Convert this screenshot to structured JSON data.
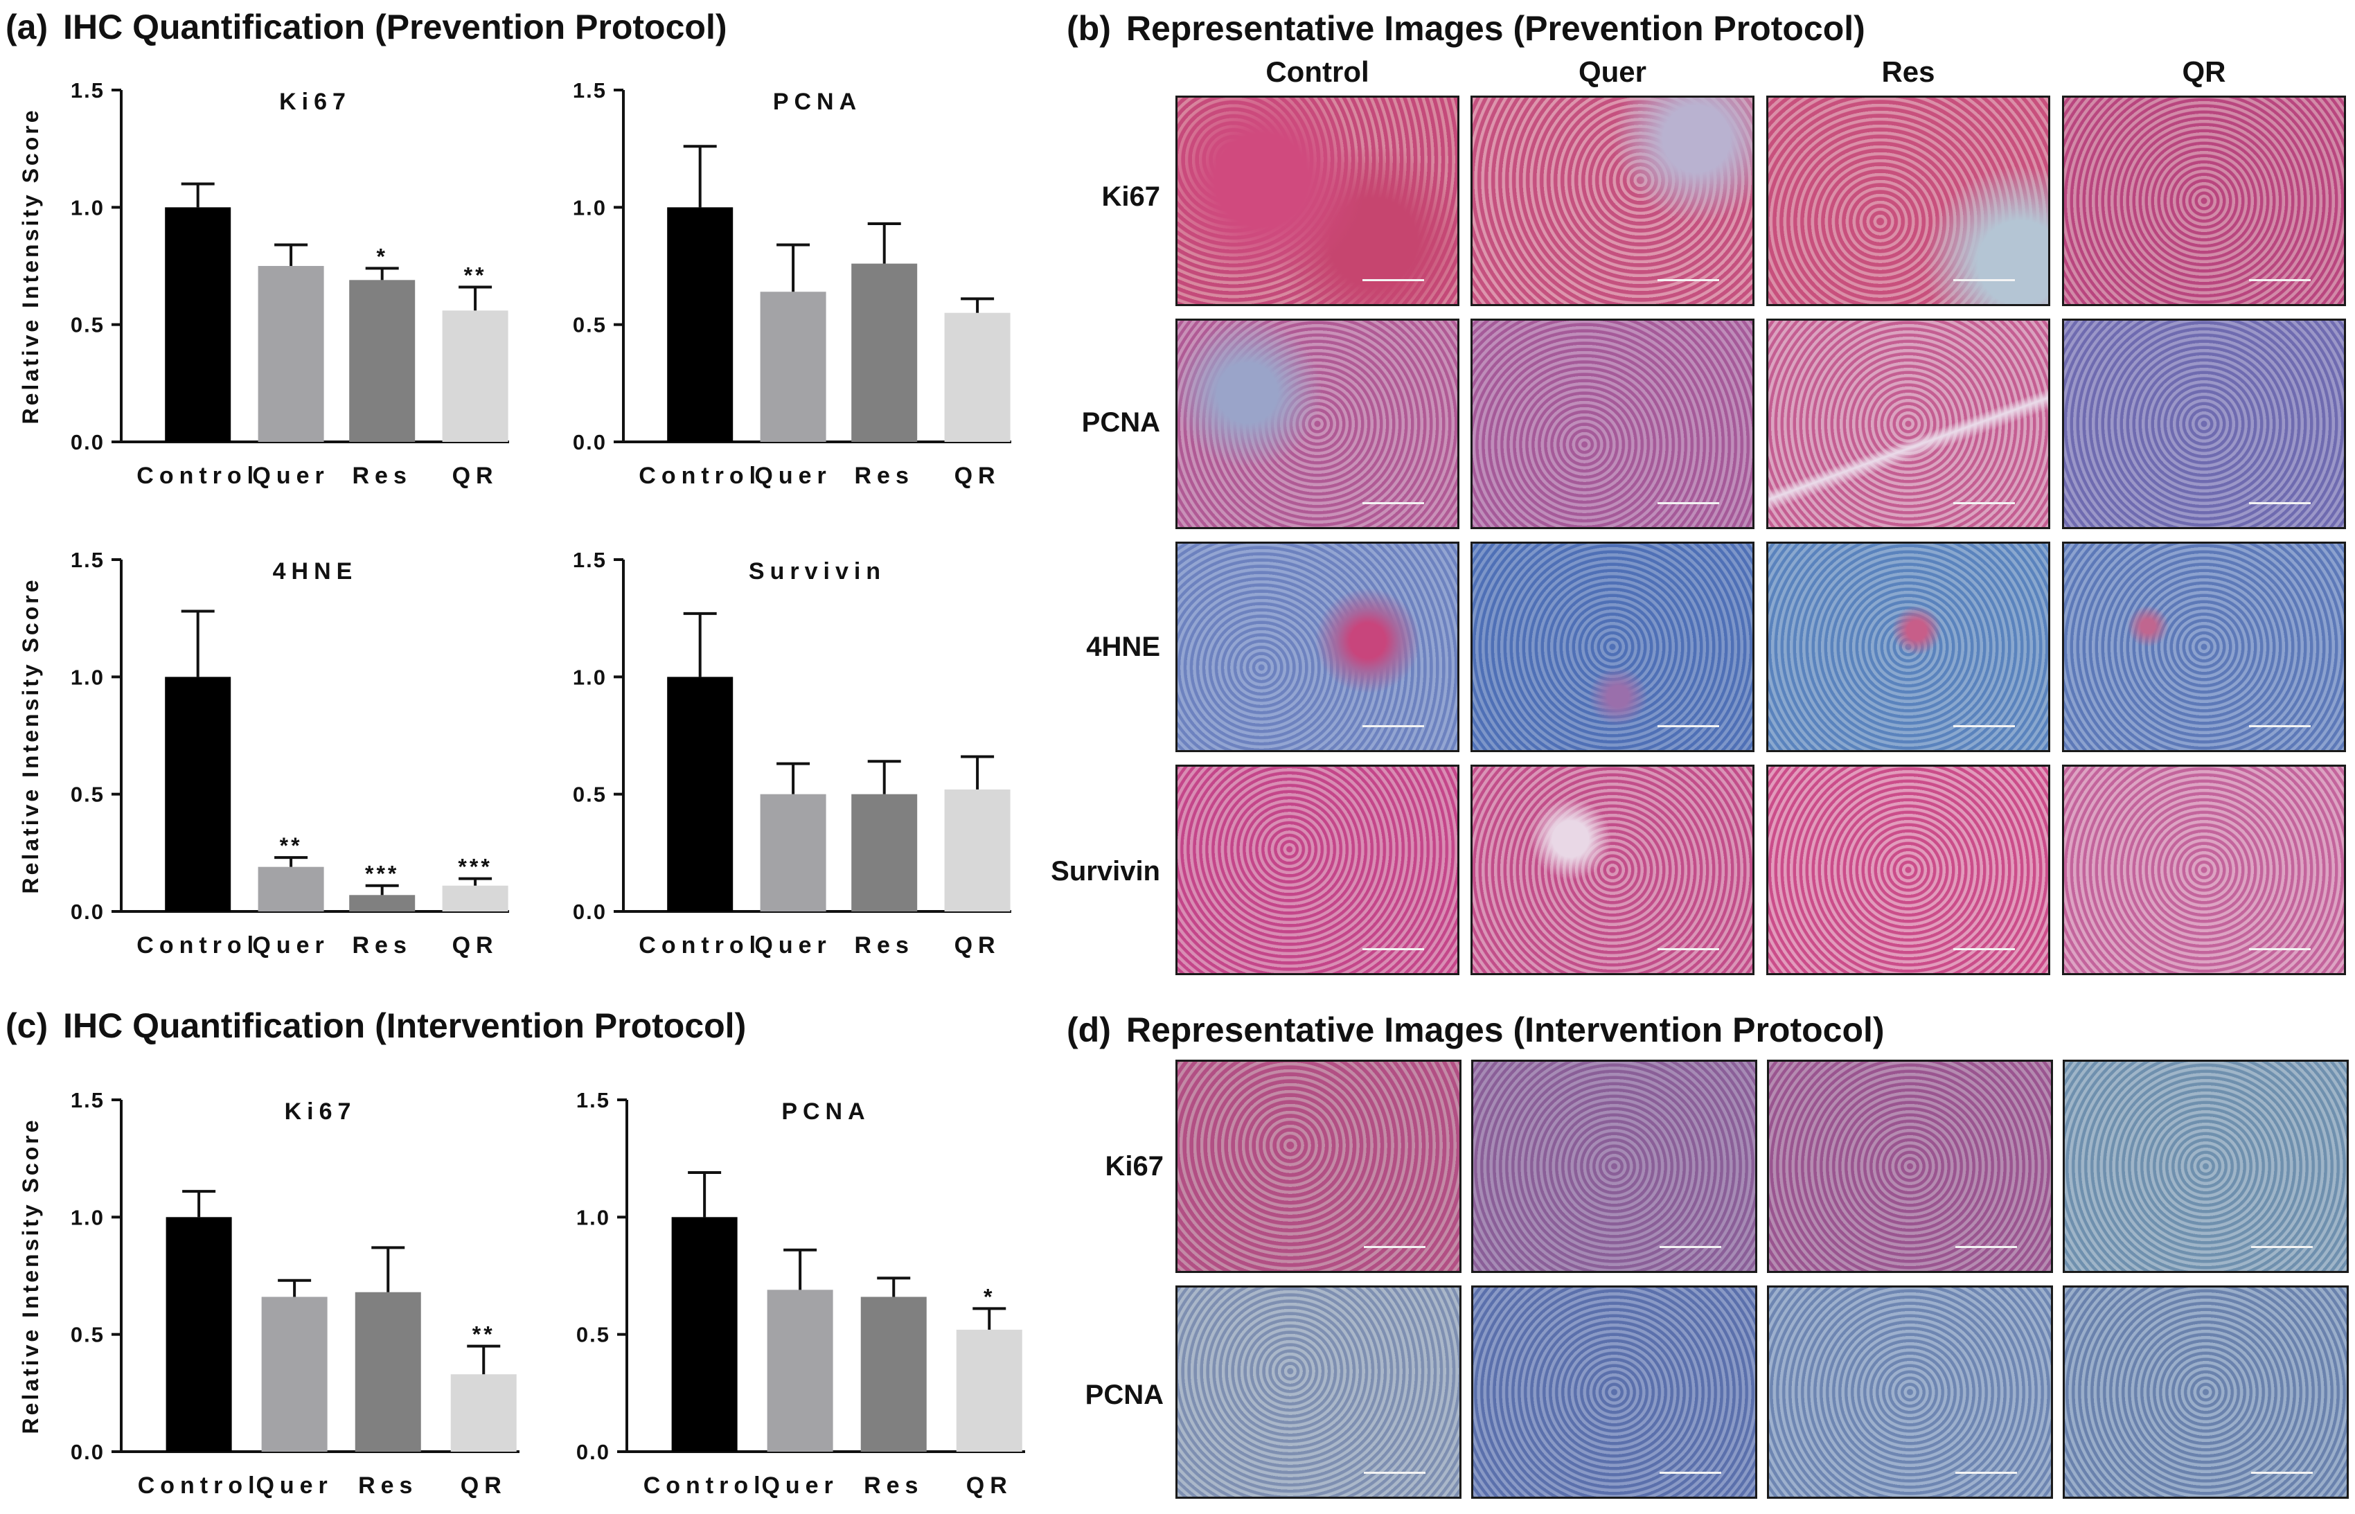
{
  "colors": {
    "Control": "#000000",
    "Quer": "#a3a3a6",
    "Res": "#808080",
    "QR": "#d8d8d8",
    "stain_pink": "#c9457f",
    "stain_blue": "#5a7bc0",
    "stain_teal": "#6f97b3"
  },
  "panels": {
    "a": {
      "letter": "(a)",
      "title": "IHC Quantification (Prevention Protocol)"
    },
    "b": {
      "letter": "(b)",
      "title": "Representative Images (Prevention Protocol)"
    },
    "c": {
      "letter": "(c)",
      "title": "IHC Quantification (Intervention Protocol)"
    },
    "d": {
      "letter": "(d)",
      "title": "Representative Images (Intervention Protocol)"
    }
  },
  "chart_data": [
    {
      "panel": "a",
      "type": "bar",
      "title": "Ki67",
      "ylabel": "Relative Intensity Score",
      "categories": [
        "Control",
        "Quer",
        "Res",
        "QR"
      ],
      "values": [
        1.0,
        0.75,
        0.69,
        0.56
      ],
      "errors": [
        0.1,
        0.09,
        0.05,
        0.1
      ],
      "significance": [
        "",
        "",
        "*",
        "**"
      ],
      "ylim": [
        0,
        1.5
      ],
      "yticks": [
        "0.0",
        "0.5",
        "1.0",
        "1.5"
      ]
    },
    {
      "panel": "a",
      "type": "bar",
      "title": "PCNA",
      "ylabel": "",
      "categories": [
        "Control",
        "Quer",
        "Res",
        "QR"
      ],
      "values": [
        1.0,
        0.64,
        0.76,
        0.55
      ],
      "errors": [
        0.26,
        0.2,
        0.17,
        0.06
      ],
      "significance": [
        "",
        "",
        "",
        ""
      ],
      "ylim": [
        0,
        1.5
      ],
      "yticks": [
        "0.0",
        "0.5",
        "1.0",
        "1.5"
      ]
    },
    {
      "panel": "a",
      "type": "bar",
      "title": "4HNE",
      "ylabel": "Relative Intensity Score",
      "categories": [
        "Control",
        "Quer",
        "Res",
        "QR"
      ],
      "values": [
        1.0,
        0.19,
        0.07,
        0.11
      ],
      "errors": [
        0.28,
        0.04,
        0.04,
        0.03
      ],
      "significance": [
        "",
        "**",
        "***",
        "***"
      ],
      "ylim": [
        0,
        1.5
      ],
      "yticks": [
        "0.0",
        "0.5",
        "1.0",
        "1.5"
      ]
    },
    {
      "panel": "a",
      "type": "bar",
      "title": "Survivin",
      "ylabel": "",
      "categories": [
        "Control",
        "Quer",
        "Res",
        "QR"
      ],
      "values": [
        1.0,
        0.5,
        0.5,
        0.52
      ],
      "errors": [
        0.27,
        0.13,
        0.14,
        0.14
      ],
      "significance": [
        "",
        "",
        "",
        ""
      ],
      "ylim": [
        0,
        1.5
      ],
      "yticks": [
        "0.0",
        "0.5",
        "1.0",
        "1.5"
      ]
    },
    {
      "panel": "c",
      "type": "bar",
      "title": "Ki67",
      "ylabel": "Relative Intensity Score",
      "categories": [
        "Control",
        "Quer",
        "Res",
        "QR"
      ],
      "values": [
        1.0,
        0.66,
        0.68,
        0.33
      ],
      "errors": [
        0.11,
        0.07,
        0.19,
        0.12
      ],
      "significance": [
        "",
        "",
        "",
        "**"
      ],
      "ylim": [
        0,
        1.5
      ],
      "yticks": [
        "0.0",
        "0.5",
        "1.0",
        "1.5"
      ]
    },
    {
      "panel": "c",
      "type": "bar",
      "title": "PCNA",
      "ylabel": "",
      "categories": [
        "Control",
        "Quer",
        "Res",
        "QR"
      ],
      "values": [
        1.0,
        0.69,
        0.66,
        0.52
      ],
      "errors": [
        0.19,
        0.17,
        0.08,
        0.09
      ],
      "significance": [
        "",
        "",
        "",
        "*"
      ],
      "ylim": [
        0,
        1.5
      ],
      "yticks": [
        "0.0",
        "0.5",
        "1.0",
        "1.5"
      ]
    }
  ],
  "image_grid_b": {
    "columns": [
      "Control",
      "Quer",
      "Res",
      "QR"
    ],
    "rows": [
      "Ki67",
      "PCNA",
      "4HNE",
      "Survivin"
    ]
  },
  "image_grid_d": {
    "rows": [
      "Ki67",
      "PCNA"
    ]
  }
}
